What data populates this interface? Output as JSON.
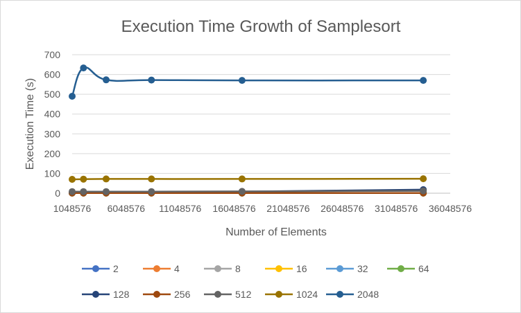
{
  "chart_data": {
    "type": "line",
    "title": "Execution Time Growth of Samplesort",
    "xlabel": "Number of Elements",
    "ylabel": "Execution Time (s)",
    "xlim": [
      1048576,
      36048576
    ],
    "ylim": [
      0,
      700
    ],
    "x_ticks": [
      1048576,
      6048576,
      11048576,
      16048576,
      21048576,
      26048576,
      31048576,
      36048576
    ],
    "y_ticks": [
      0,
      100,
      200,
      300,
      400,
      500,
      600,
      700
    ],
    "grid": "horizontal",
    "legend_position": "bottom",
    "x": [
      1048576,
      2097152,
      4194304,
      8388608,
      16777216,
      33554432
    ],
    "series": [
      {
        "name": "2",
        "color": "#4472c4",
        "values": [
          1,
          1,
          1,
          1,
          1,
          1
        ]
      },
      {
        "name": "4",
        "color": "#ed7d31",
        "values": [
          1,
          1,
          1,
          1,
          1,
          1
        ]
      },
      {
        "name": "8",
        "color": "#a5a5a5",
        "values": [
          1,
          1,
          1,
          1,
          1,
          1
        ]
      },
      {
        "name": "16",
        "color": "#ffc000",
        "values": [
          1,
          1,
          1,
          1,
          1,
          1
        ]
      },
      {
        "name": "32",
        "color": "#5b9bd5",
        "values": [
          1,
          1,
          1,
          1,
          1,
          1
        ]
      },
      {
        "name": "64",
        "color": "#70ad47",
        "values": [
          1,
          1,
          1,
          1,
          1,
          1
        ]
      },
      {
        "name": "128",
        "color": "#264478",
        "values": [
          2,
          2,
          3,
          4,
          8,
          18
        ]
      },
      {
        "name": "256",
        "color": "#9e480e",
        "values": [
          1,
          1,
          1,
          1,
          1,
          1
        ]
      },
      {
        "name": "512",
        "color": "#636363",
        "values": [
          8,
          8,
          8,
          8,
          9,
          12
        ]
      },
      {
        "name": "1024",
        "color": "#997300",
        "values": [
          70,
          71,
          72,
          72,
          72,
          73
        ]
      },
      {
        "name": "2048",
        "color": "#255e91",
        "values": [
          490,
          633,
          573,
          572,
          570,
          570
        ]
      }
    ]
  }
}
